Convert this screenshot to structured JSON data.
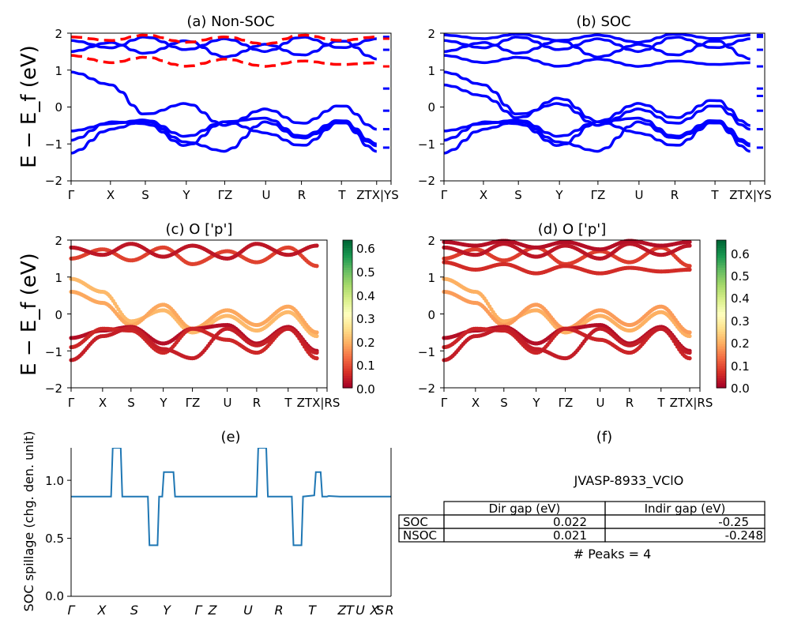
{
  "panel_a": {
    "title": "(a) Non-SOC",
    "ylabel": "E − E_f (eV)",
    "yticks": [
      "2",
      "1",
      "0",
      "−1",
      "−2"
    ],
    "xticks": [
      "Γ",
      "X",
      "S",
      "Y",
      "ΓZ",
      "U",
      "R",
      "T",
      "ZTX|YS"
    ]
  },
  "panel_b": {
    "title": "(b) SOC",
    "yticks": [
      "2",
      "1",
      "0",
      "−1",
      "−2"
    ],
    "xticks": [
      "Γ",
      "X",
      "S",
      "Y",
      "ΓZ",
      "U",
      "R",
      "T",
      "ZTX|YS"
    ]
  },
  "panel_c": {
    "title": "(c)  O ['p']",
    "ylabel": "E − E_f (eV)",
    "yticks": [
      "2",
      "1",
      "0",
      "−1",
      "−2"
    ],
    "xticks": [
      "Γ",
      "X",
      "S",
      "Y",
      "ΓZ",
      "U",
      "R",
      "T",
      "ZTX|RS"
    ],
    "cbar_ticks": [
      "0.6",
      "0.5",
      "0.4",
      "0.3",
      "0.2",
      "0.1",
      "0.0"
    ]
  },
  "panel_d": {
    "title": "(d) O ['p']",
    "yticks": [
      "2",
      "1",
      "0",
      "−1",
      "−2"
    ],
    "xticks": [
      "Γ",
      "X",
      "S",
      "Y",
      "ΓZ",
      "U",
      "R",
      "T",
      "ZTX|RS"
    ],
    "cbar_ticks": [
      "0.6",
      "0.5",
      "0.4",
      "0.3",
      "0.2",
      "0.1",
      "0.0"
    ]
  },
  "panel_e": {
    "title": "(e)",
    "ylabel": "SOC spillage (chg. den. unit)",
    "yticks": [
      "1.0",
      "0.5",
      "0.0"
    ],
    "xticks": [
      "Γ",
      "X",
      "S",
      "Y",
      "Γ",
      "Z",
      "U",
      "R",
      "T",
      "Z",
      "T",
      "U",
      "X",
      "S",
      "R"
    ]
  },
  "panel_f": {
    "title": "(f)",
    "material": "JVASP-8933_VClO",
    "columns": [
      "Dir gap (eV)",
      "Indir gap (eV)"
    ],
    "rows": [
      {
        "label": "SOC",
        "dir": "0.022",
        "indir": "-0.25"
      },
      {
        "label": "NSOC",
        "dir": "0.021",
        "indir": "-0.248"
      }
    ],
    "peaks": "# Peaks = 4"
  },
  "chart_data": [
    {
      "type": "line",
      "title": "(a) Non-SOC",
      "xlabel": "",
      "ylabel": "E − E_f (eV)",
      "ylim": [
        -2,
        2
      ],
      "x_ticks": [
        "Γ",
        "X",
        "S",
        "Y",
        "ΓZ",
        "U",
        "R",
        "T",
        "ZTX|YS"
      ],
      "series": [
        {
          "color": "#0000ff",
          "style": "solid",
          "y": [
            0.95,
            0.6,
            -0.2,
            0.1,
            -0.5,
            -0.05,
            -0.45,
            0.05,
            -0.6,
            0.5
          ]
        },
        {
          "color": "#0000ff",
          "style": "solid",
          "y": [
            -0.65,
            -0.45,
            -0.35,
            -0.8,
            -0.4,
            -0.3,
            -0.8,
            -0.35,
            -1.0,
            -0.1
          ]
        },
        {
          "color": "#0000ff",
          "style": "solid",
          "y": [
            -0.9,
            -0.4,
            -0.45,
            -1.05,
            -0.4,
            -0.7,
            -1.05,
            -0.4,
            -1.2,
            -0.6
          ]
        },
        {
          "color": "#0000ff",
          "style": "solid",
          "y": [
            -1.25,
            -0.6,
            -0.38,
            -0.95,
            -1.2,
            -0.4,
            -0.85,
            -0.4,
            -1.05,
            -1.1
          ]
        },
        {
          "color": "#0000ff",
          "style": "solid",
          "y": [
            1.5,
            1.75,
            1.45,
            1.8,
            1.35,
            1.7,
            1.4,
            1.8,
            1.3,
            1.55
          ]
        },
        {
          "color": "#0000ff",
          "style": "solid",
          "y": [
            1.8,
            1.6,
            1.9,
            1.55,
            1.85,
            1.5,
            1.9,
            1.6,
            1.85,
            1.9
          ]
        },
        {
          "color": "#ff0000",
          "style": "dashed",
          "y": [
            1.4,
            1.2,
            1.35,
            1.1,
            1.3,
            1.1,
            1.25,
            1.15,
            1.2,
            1.1
          ]
        },
        {
          "color": "#ff0000",
          "style": "dashed",
          "y": [
            1.9,
            1.8,
            1.95,
            1.75,
            1.9,
            1.7,
            1.95,
            1.8,
            1.9,
            1.85
          ]
        }
      ]
    },
    {
      "type": "line",
      "title": "(b) SOC",
      "ylim": [
        -2,
        2
      ],
      "x_ticks": [
        "Γ",
        "X",
        "S",
        "Y",
        "ΓZ",
        "U",
        "R",
        "T",
        "ZTX|YS"
      ],
      "series": [
        {
          "color": "#0000ff",
          "style": "solid",
          "y": [
            0.95,
            0.6,
            -0.2,
            0.1,
            -0.5,
            -0.05,
            -0.45,
            0.05,
            -0.6,
            0.5
          ]
        },
        {
          "color": "#0000ff",
          "style": "solid",
          "y": [
            0.6,
            0.3,
            -0.3,
            0.25,
            -0.4,
            0.1,
            -0.3,
            0.2,
            -0.5,
            0.3
          ]
        },
        {
          "color": "#0000ff",
          "style": "solid",
          "y": [
            -0.65,
            -0.45,
            -0.35,
            -0.8,
            -0.4,
            -0.3,
            -0.8,
            -0.35,
            -1.0,
            -0.1
          ]
        },
        {
          "color": "#0000ff",
          "style": "solid",
          "y": [
            -0.9,
            -0.4,
            -0.45,
            -1.05,
            -0.4,
            -0.7,
            -1.05,
            -0.4,
            -1.2,
            -0.6
          ]
        },
        {
          "color": "#0000ff",
          "style": "solid",
          "y": [
            -1.25,
            -0.6,
            -0.38,
            -0.95,
            -1.2,
            -0.4,
            -0.85,
            -0.4,
            -1.05,
            -1.1
          ]
        },
        {
          "color": "#0000ff",
          "style": "solid",
          "y": [
            1.5,
            1.75,
            1.45,
            1.8,
            1.35,
            1.7,
            1.4,
            1.8,
            1.3,
            1.55
          ]
        },
        {
          "color": "#0000ff",
          "style": "solid",
          "y": [
            1.4,
            1.2,
            1.35,
            1.1,
            1.3,
            1.1,
            1.25,
            1.15,
            1.2,
            1.1
          ]
        },
        {
          "color": "#0000ff",
          "style": "solid",
          "y": [
            1.8,
            1.6,
            1.9,
            1.55,
            1.85,
            1.5,
            1.9,
            1.6,
            1.85,
            1.9
          ]
        },
        {
          "color": "#0000ff",
          "style": "solid",
          "y": [
            1.95,
            1.85,
            1.98,
            1.8,
            1.95,
            1.75,
            1.98,
            1.85,
            1.95,
            1.95
          ]
        }
      ]
    },
    {
      "type": "scatter",
      "title": "(c)  O ['p']",
      "ylabel": "E − E_f (eV)",
      "ylim": [
        -2,
        2
      ],
      "colorbar_range": [
        0.0,
        0.62
      ],
      "colormap": "RdYlGn",
      "x_ticks": [
        "Γ",
        "X",
        "S",
        "Y",
        "ΓZ",
        "U",
        "R",
        "T",
        "ZTX|RS"
      ],
      "series": [
        {
          "weight": 0.2,
          "y": [
            0.95,
            0.6,
            -0.2,
            0.1,
            -0.5,
            -0.05,
            -0.45,
            0.05,
            -0.6,
            0.5
          ]
        },
        {
          "weight": 0.18,
          "y": [
            0.6,
            0.3,
            -0.3,
            0.25,
            -0.4,
            0.1,
            -0.3,
            0.2,
            -0.5,
            0.3
          ]
        },
        {
          "weight": 0.02,
          "y": [
            -0.65,
            -0.45,
            -0.35,
            -0.8,
            -0.4,
            -0.3,
            -0.8,
            -0.35,
            -1.0,
            -0.1
          ]
        },
        {
          "weight": 0.05,
          "y": [
            -0.9,
            -0.4,
            -0.45,
            -1.05,
            -0.4,
            -0.7,
            -1.05,
            -0.4,
            -1.2,
            -0.6
          ]
        },
        {
          "weight": 0.04,
          "y": [
            -1.25,
            -0.6,
            -0.38,
            -0.95,
            -1.2,
            -0.4,
            -0.85,
            -0.4,
            -1.05,
            -1.1
          ]
        },
        {
          "weight": 0.08,
          "y": [
            1.5,
            1.75,
            1.45,
            1.8,
            1.35,
            1.7,
            1.4,
            1.8,
            1.3,
            1.55
          ]
        },
        {
          "weight": 0.03,
          "y": [
            1.8,
            1.6,
            1.9,
            1.55,
            1.85,
            1.5,
            1.9,
            1.6,
            1.85,
            1.9
          ]
        }
      ]
    },
    {
      "type": "scatter",
      "title": "(d) O ['p']",
      "ylim": [
        -2,
        2
      ],
      "colorbar_range": [
        0.0,
        0.66
      ],
      "colormap": "RdYlGn",
      "x_ticks": [
        "Γ",
        "X",
        "S",
        "Y",
        "ΓZ",
        "U",
        "R",
        "T",
        "ZTX|RS"
      ],
      "series": [
        {
          "weight": 0.2,
          "y": [
            0.95,
            0.6,
            -0.2,
            0.1,
            -0.5,
            -0.05,
            -0.45,
            0.05,
            -0.6,
            0.5
          ]
        },
        {
          "weight": 0.18,
          "y": [
            0.6,
            0.3,
            -0.3,
            0.25,
            -0.4,
            0.1,
            -0.3,
            0.2,
            -0.5,
            0.3
          ]
        },
        {
          "weight": 0.02,
          "y": [
            -0.65,
            -0.45,
            -0.35,
            -0.8,
            -0.4,
            -0.3,
            -0.8,
            -0.35,
            -1.0,
            -0.1
          ]
        },
        {
          "weight": 0.05,
          "y": [
            -0.9,
            -0.4,
            -0.45,
            -1.05,
            -0.4,
            -0.7,
            -1.05,
            -0.4,
            -1.2,
            -0.6
          ]
        },
        {
          "weight": 0.04,
          "y": [
            -1.25,
            -0.6,
            -0.38,
            -0.95,
            -1.2,
            -0.4,
            -0.85,
            -0.4,
            -1.05,
            -1.1
          ]
        },
        {
          "weight": 0.08,
          "y": [
            1.5,
            1.75,
            1.45,
            1.8,
            1.35,
            1.7,
            1.4,
            1.8,
            1.3,
            1.55
          ]
        },
        {
          "weight": 0.06,
          "y": [
            1.4,
            1.2,
            1.35,
            1.1,
            1.3,
            1.1,
            1.25,
            1.15,
            1.2,
            1.1
          ]
        },
        {
          "weight": 0.03,
          "y": [
            1.8,
            1.6,
            1.9,
            1.55,
            1.85,
            1.5,
            1.9,
            1.6,
            1.85,
            1.9
          ]
        },
        {
          "weight": 0.02,
          "y": [
            1.95,
            1.85,
            1.98,
            1.8,
            1.95,
            1.75,
            1.98,
            1.85,
            1.95,
            1.95
          ]
        }
      ]
    },
    {
      "type": "line",
      "title": "(e)",
      "ylabel": "SOC spillage (chg. den. unit)",
      "ylim": [
        0,
        1.28
      ],
      "color": "#1f77b4",
      "x_ticks": [
        "Γ",
        "X",
        "S",
        "Y",
        "Γ",
        "Z",
        "U",
        "R",
        "T",
        "Z",
        "T",
        "U",
        "X",
        "S",
        "R"
      ],
      "x": [
        0,
        0.125,
        0.13,
        0.155,
        0.16,
        0.24,
        0.245,
        0.27,
        0.275,
        0.285,
        0.29,
        0.32,
        0.325,
        0.355,
        0.36,
        0.58,
        0.585,
        0.61,
        0.615,
        0.69,
        0.695,
        0.72,
        0.725,
        0.76,
        0.765,
        0.78,
        0.785,
        0.8,
        0.805,
        0.84,
        1.0
      ],
      "y": [
        0.86,
        0.86,
        1.28,
        1.28,
        0.86,
        0.86,
        0.44,
        0.44,
        0.86,
        0.86,
        1.07,
        1.07,
        0.86,
        0.86,
        0.86,
        0.86,
        1.28,
        1.28,
        0.86,
        0.86,
        0.44,
        0.44,
        0.86,
        0.87,
        1.07,
        1.07,
        0.86,
        0.86,
        0.865,
        0.86,
        0.86
      ]
    }
  ]
}
